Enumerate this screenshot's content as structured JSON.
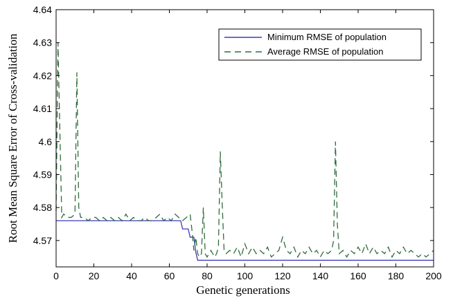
{
  "chart_data": {
    "type": "line",
    "xlabel": "Genetic generations",
    "ylabel": "Root Mean Square Error of Cross-validation",
    "xlim": [
      0,
      200
    ],
    "ylim": [
      4.562,
      4.64
    ],
    "xticks": [
      0,
      20,
      40,
      60,
      80,
      100,
      120,
      140,
      160,
      180,
      200
    ],
    "xtick_labels": [
      "0",
      "20",
      "40",
      "60",
      "80",
      "100",
      "120",
      "140",
      "160",
      "180",
      "200"
    ],
    "yticks": [
      4.57,
      4.58,
      4.59,
      4.6,
      4.61,
      4.62,
      4.63,
      4.64
    ],
    "ytick_labels": [
      "4.57",
      "4.58",
      "4.59",
      "4.6",
      "4.61",
      "4.62",
      "4.63",
      "4.64"
    ],
    "grid": false,
    "legend_position": "top-right",
    "series": [
      {
        "name": "Minimum RMSE of population",
        "color": "#3b3bb8",
        "style": "solid",
        "points": [
          [
            0,
            4.576
          ],
          [
            66,
            4.576
          ],
          [
            67,
            4.5735
          ],
          [
            70,
            4.5735
          ],
          [
            71,
            4.571
          ],
          [
            73,
            4.571
          ],
          [
            74,
            4.5665
          ],
          [
            75,
            4.564
          ],
          [
            200,
            4.564
          ]
        ]
      },
      {
        "name": "Average RMSE of population",
        "color": "#2f6b3a",
        "style": "dashed",
        "points": [
          [
            0,
            4.579
          ],
          [
            1,
            4.63
          ],
          [
            2,
            4.603
          ],
          [
            3,
            4.577
          ],
          [
            4,
            4.578
          ],
          [
            6,
            4.577
          ],
          [
            8,
            4.577
          ],
          [
            10,
            4.578
          ],
          [
            11,
            4.621
          ],
          [
            12,
            4.58
          ],
          [
            13,
            4.577
          ],
          [
            15,
            4.577
          ],
          [
            17,
            4.576
          ],
          [
            19,
            4.577
          ],
          [
            21,
            4.577
          ],
          [
            23,
            4.576
          ],
          [
            25,
            4.577
          ],
          [
            27,
            4.576
          ],
          [
            29,
            4.577
          ],
          [
            31,
            4.576
          ],
          [
            33,
            4.577
          ],
          [
            35,
            4.576
          ],
          [
            37,
            4.578
          ],
          [
            39,
            4.576
          ],
          [
            41,
            4.577
          ],
          [
            43,
            4.576
          ],
          [
            45,
            4.576
          ],
          [
            47,
            4.577
          ],
          [
            49,
            4.576
          ],
          [
            51,
            4.576
          ],
          [
            53,
            4.577
          ],
          [
            55,
            4.578
          ],
          [
            57,
            4.576
          ],
          [
            59,
            4.577
          ],
          [
            61,
            4.576
          ],
          [
            63,
            4.578
          ],
          [
            65,
            4.577
          ],
          [
            67,
            4.576
          ],
          [
            69,
            4.577
          ],
          [
            71,
            4.578
          ],
          [
            72,
            4.573
          ],
          [
            73,
            4.567
          ],
          [
            74,
            4.571
          ],
          [
            75,
            4.566
          ],
          [
            76,
            4.565
          ],
          [
            77,
            4.566
          ],
          [
            78,
            4.58
          ],
          [
            79,
            4.566
          ],
          [
            80,
            4.565
          ],
          [
            81,
            4.566
          ],
          [
            82,
            4.567
          ],
          [
            83,
            4.566
          ],
          [
            84,
            4.565
          ],
          [
            85,
            4.566
          ],
          [
            86,
            4.568
          ],
          [
            87,
            4.597
          ],
          [
            88,
            4.581
          ],
          [
            89,
            4.567
          ],
          [
            90,
            4.566
          ],
          [
            92,
            4.567
          ],
          [
            94,
            4.566
          ],
          [
            96,
            4.568
          ],
          [
            98,
            4.565
          ],
          [
            100,
            4.569
          ],
          [
            102,
            4.566
          ],
          [
            104,
            4.568
          ],
          [
            106,
            4.566
          ],
          [
            108,
            4.567
          ],
          [
            110,
            4.566
          ],
          [
            112,
            4.568
          ],
          [
            114,
            4.565
          ],
          [
            116,
            4.566
          ],
          [
            118,
            4.567
          ],
          [
            120,
            4.571
          ],
          [
            122,
            4.567
          ],
          [
            124,
            4.566
          ],
          [
            126,
            4.568
          ],
          [
            128,
            4.565
          ],
          [
            130,
            4.567
          ],
          [
            132,
            4.566
          ],
          [
            134,
            4.568
          ],
          [
            136,
            4.566
          ],
          [
            138,
            4.567
          ],
          [
            140,
            4.565
          ],
          [
            142,
            4.567
          ],
          [
            144,
            4.566
          ],
          [
            146,
            4.567
          ],
          [
            147,
            4.57
          ],
          [
            148,
            4.6
          ],
          [
            149,
            4.575
          ],
          [
            150,
            4.566
          ],
          [
            152,
            4.567
          ],
          [
            154,
            4.565
          ],
          [
            156,
            4.567
          ],
          [
            158,
            4.566
          ],
          [
            160,
            4.568
          ],
          [
            162,
            4.566
          ],
          [
            164,
            4.569
          ],
          [
            166,
            4.566
          ],
          [
            168,
            4.568
          ],
          [
            170,
            4.566
          ],
          [
            172,
            4.567
          ],
          [
            174,
            4.566
          ],
          [
            176,
            4.568
          ],
          [
            178,
            4.565
          ],
          [
            180,
            4.567
          ],
          [
            182,
            4.566
          ],
          [
            184,
            4.568
          ],
          [
            186,
            4.566
          ],
          [
            188,
            4.567
          ],
          [
            190,
            4.566
          ],
          [
            192,
            4.565
          ],
          [
            194,
            4.566
          ],
          [
            196,
            4.565
          ],
          [
            198,
            4.566
          ],
          [
            200,
            4.567
          ]
        ]
      }
    ]
  }
}
